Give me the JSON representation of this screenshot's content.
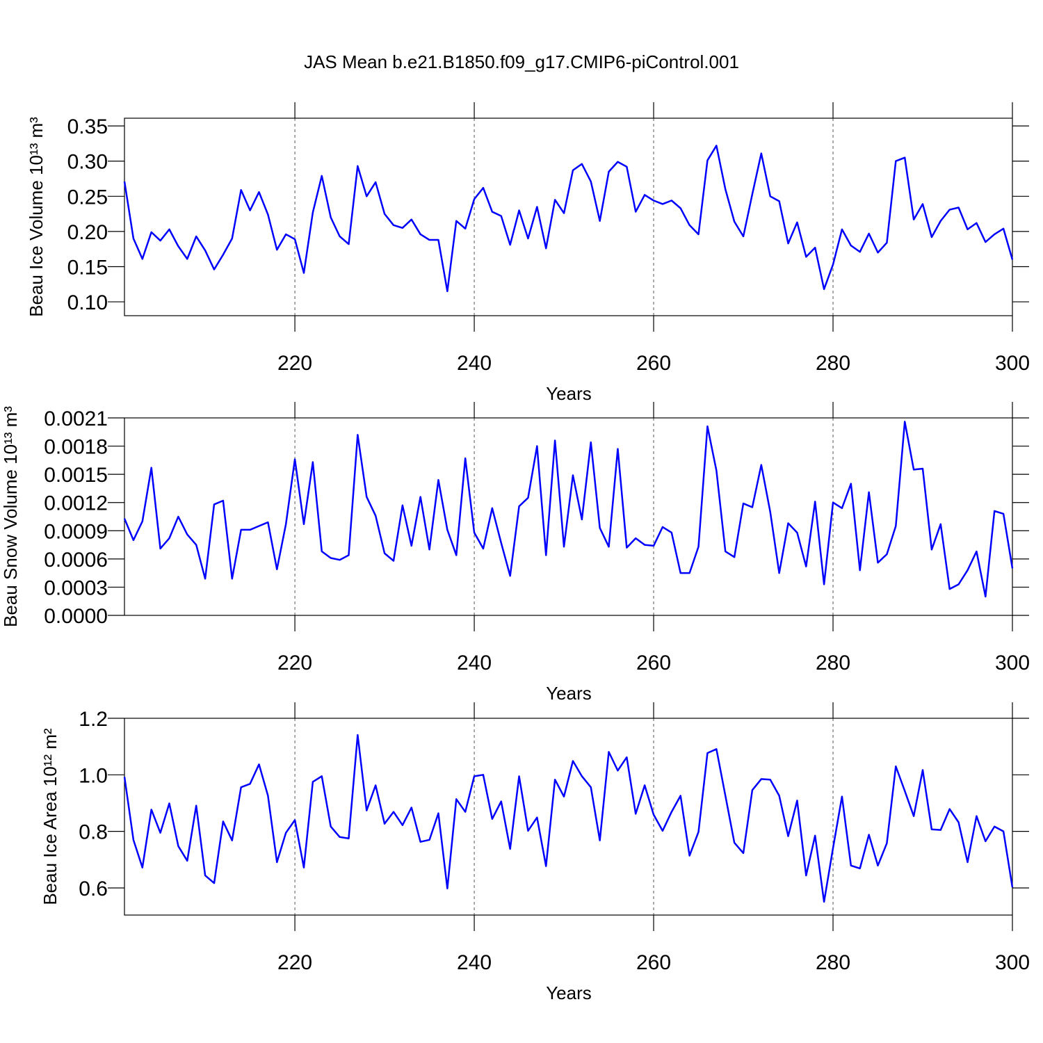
{
  "chart_data": [
    {
      "type": "line",
      "title": "JAS Mean b.e21.B1850.f09_g17.CMIP6-piControl.001",
      "x_label": "Years",
      "y_label": "Beau Ice Volume 10¹³ m³",
      "x": [
        201,
        202,
        203,
        204,
        205,
        206,
        207,
        208,
        209,
        210,
        211,
        212,
        213,
        214,
        215,
        216,
        217,
        218,
        219,
        220,
        221,
        222,
        223,
        224,
        225,
        226,
        227,
        228,
        229,
        230,
        231,
        232,
        233,
        234,
        235,
        236,
        237,
        238,
        239,
        240,
        241,
        242,
        243,
        244,
        245,
        246,
        247,
        248,
        249,
        250,
        251,
        252,
        253,
        254,
        255,
        256,
        257,
        258,
        259,
        260,
        261,
        262,
        263,
        264,
        265,
        266,
        267,
        268,
        269,
        270,
        271,
        272,
        273,
        274,
        275,
        276,
        277,
        278,
        279,
        280,
        281,
        282,
        283,
        284,
        285,
        286,
        287,
        288,
        289,
        290,
        291,
        292,
        293,
        294,
        295,
        296,
        297,
        298,
        299,
        300
      ],
      "series": [
        {
          "color": "#0000ff",
          "values": [
            0.271,
            0.19,
            0.161,
            0.199,
            0.187,
            0.203,
            0.179,
            0.161,
            0.193,
            0.173,
            0.146,
            0.167,
            0.19,
            0.259,
            0.23,
            0.256,
            0.224,
            0.174,
            0.196,
            0.189,
            0.141,
            0.227,
            0.279,
            0.22,
            0.193,
            0.182,
            0.293,
            0.25,
            0.27,
            0.225,
            0.209,
            0.205,
            0.217,
            0.196,
            0.188,
            0.188,
            0.115,
            0.215,
            0.204,
            0.246,
            0.262,
            0.228,
            0.222,
            0.181,
            0.23,
            0.19,
            0.235,
            0.176,
            0.245,
            0.226,
            0.287,
            0.296,
            0.271,
            0.215,
            0.285,
            0.299,
            0.292,
            0.228,
            0.252,
            0.244,
            0.239,
            0.244,
            0.233,
            0.209,
            0.196,
            0.301,
            0.322,
            0.26,
            0.214,
            0.193,
            0.253,
            0.311,
            0.25,
            0.243,
            0.183,
            0.213,
            0.164,
            0.177,
            0.118,
            0.153,
            0.203,
            0.18,
            0.171,
            0.197,
            0.17,
            0.184,
            0.3,
            0.305,
            0.217,
            0.239,
            0.192,
            0.215,
            0.231,
            0.234,
            0.203,
            0.212,
            0.185,
            0.196,
            0.204,
            0.16
          ]
        }
      ],
      "xlim": [
        201,
        300
      ],
      "xticks": [
        220,
        240,
        260,
        280,
        300
      ],
      "ylim": [
        0.0803,
        0.361
      ],
      "yticks": [
        {
          "value": 0.1,
          "label": "0.10"
        },
        0.15,
        {
          "value": 0.2,
          "label": "0.20"
        },
        0.25,
        {
          "value": 0.3,
          "label": "0.30"
        },
        0.35
      ],
      "xgrid": true
    },
    {
      "type": "line",
      "x_label": "Years",
      "y_label": "Beau Snow Volume 10¹³ m³",
      "x": [
        201,
        202,
        203,
        204,
        205,
        206,
        207,
        208,
        209,
        210,
        211,
        212,
        213,
        214,
        215,
        216,
        217,
        218,
        219,
        220,
        221,
        222,
        223,
        224,
        225,
        226,
        227,
        228,
        229,
        230,
        231,
        232,
        233,
        234,
        235,
        236,
        237,
        238,
        239,
        240,
        241,
        242,
        243,
        244,
        245,
        246,
        247,
        248,
        249,
        250,
        251,
        252,
        253,
        254,
        255,
        256,
        257,
        258,
        259,
        260,
        261,
        262,
        263,
        264,
        265,
        266,
        267,
        268,
        269,
        270,
        271,
        272,
        273,
        274,
        275,
        276,
        277,
        278,
        279,
        280,
        281,
        282,
        283,
        284,
        285,
        286,
        287,
        288,
        289,
        290,
        291,
        292,
        293,
        294,
        295,
        296,
        297,
        298,
        299,
        300
      ],
      "series": [
        {
          "color": "#0000ff",
          "values": [
            0.00103,
            0.0008,
            0.001,
            0.00157,
            0.00071,
            0.00082,
            0.00105,
            0.00086,
            0.00075,
            0.00039,
            0.00118,
            0.00122,
            0.00039,
            0.00091,
            0.00091,
            0.00095,
            0.00099,
            0.00049,
            0.00097,
            0.00166,
            0.00097,
            0.00163,
            0.00068,
            0.00061,
            0.00059,
            0.00064,
            0.00192,
            0.00126,
            0.00106,
            0.00066,
            0.00058,
            0.00117,
            0.00074,
            0.00126,
            0.0007,
            0.00144,
            0.00091,
            0.00064,
            0.00167,
            0.00088,
            0.00071,
            0.00114,
            0.00077,
            0.00042,
            0.00116,
            0.00125,
            0.0018,
            0.00064,
            0.00186,
            0.00073,
            0.00149,
            0.00102,
            0.00184,
            0.00093,
            0.00073,
            0.00177,
            0.00072,
            0.00082,
            0.00075,
            0.00074,
            0.00094,
            0.00088,
            0.00045,
            0.00045,
            0.00073,
            0.00201,
            0.00154,
            0.00068,
            0.00062,
            0.00119,
            0.00115,
            0.0016,
            0.0011,
            0.00045,
            0.00098,
            0.00088,
            0.00052,
            0.00121,
            0.00033,
            0.0012,
            0.00114,
            0.0014,
            0.00048,
            0.00131,
            0.00056,
            0.00065,
            0.00095,
            0.00206,
            0.00155,
            0.00156,
            0.0007,
            0.00097,
            0.00028,
            0.00033,
            0.00048,
            0.00068,
            0.0002,
            0.00111,
            0.00108,
            0.0005
          ]
        }
      ],
      "xlim": [
        201,
        300
      ],
      "xticks": [
        220,
        240,
        260,
        280,
        300
      ],
      "ylim": [
        0,
        0.0021
      ],
      "yticks": [
        {
          "value": 0,
          "label": "0.0000"
        },
        {
          "value": 0.0003,
          "label": "0.0003"
        },
        {
          "value": 0.0006,
          "label": "0.0006"
        },
        {
          "value": 0.0009,
          "label": "0.0009"
        },
        {
          "value": 0.0012,
          "label": "0.0012"
        },
        {
          "value": 0.0015,
          "label": "0.0015"
        },
        {
          "value": 0.0018,
          "label": "0.0018"
        },
        {
          "value": 0.0021,
          "label": "0.0021"
        }
      ],
      "xgrid": true
    },
    {
      "type": "line",
      "x_label": "Years",
      "y_label": "Beau Ice Area 10¹² m²",
      "x": [
        201,
        202,
        203,
        204,
        205,
        206,
        207,
        208,
        209,
        210,
        211,
        212,
        213,
        214,
        215,
        216,
        217,
        218,
        219,
        220,
        221,
        222,
        223,
        224,
        225,
        226,
        227,
        228,
        229,
        230,
        231,
        232,
        233,
        234,
        235,
        236,
        237,
        238,
        239,
        240,
        241,
        242,
        243,
        244,
        245,
        246,
        247,
        248,
        249,
        250,
        251,
        252,
        253,
        254,
        255,
        256,
        257,
        258,
        259,
        260,
        261,
        262,
        263,
        264,
        265,
        266,
        267,
        268,
        269,
        270,
        271,
        272,
        273,
        274,
        275,
        276,
        277,
        278,
        279,
        280,
        281,
        282,
        283,
        284,
        285,
        286,
        287,
        288,
        289,
        290,
        291,
        292,
        293,
        294,
        295,
        296,
        297,
        298,
        299,
        300
      ],
      "series": [
        {
          "color": "#0000ff",
          "values": [
            0.993,
            0.77,
            0.672,
            0.877,
            0.795,
            0.899,
            0.748,
            0.696,
            0.891,
            0.644,
            0.617,
            0.835,
            0.768,
            0.956,
            0.968,
            1.037,
            0.926,
            0.691,
            0.795,
            0.84,
            0.672,
            0.975,
            0.995,
            0.817,
            0.78,
            0.775,
            1.141,
            0.874,
            0.963,
            0.827,
            0.869,
            0.822,
            0.884,
            0.763,
            0.77,
            0.864,
            0.598,
            0.914,
            0.869,
            0.995,
            1.0,
            0.844,
            0.906,
            0.738,
            0.995,
            0.802,
            0.849,
            0.677,
            0.983,
            0.923,
            1.049,
            0.995,
            0.956,
            0.768,
            1.081,
            1.015,
            1.062,
            0.862,
            0.963,
            0.859,
            0.802,
            0.869,
            0.926,
            0.714,
            0.798,
            1.077,
            1.091,
            0.926,
            0.76,
            0.723,
            0.946,
            0.985,
            0.983,
            0.926,
            0.783,
            0.909,
            0.644,
            0.785,
            0.551,
            0.741,
            0.923,
            0.679,
            0.669,
            0.788,
            0.679,
            0.758,
            1.03,
            0.943,
            0.854,
            1.017,
            0.807,
            0.805,
            0.879,
            0.832,
            0.691,
            0.854,
            0.765,
            0.817,
            0.8,
            0.602
          ]
        }
      ],
      "xlim": [
        201,
        300
      ],
      "xticks": [
        220,
        240,
        260,
        280,
        300
      ],
      "ylim": [
        0.504,
        1.2
      ],
      "yticks": [
        0.6,
        0.8,
        {
          "value": 1.0,
          "label": "1.0"
        },
        1.2
      ],
      "xgrid": true
    }
  ]
}
